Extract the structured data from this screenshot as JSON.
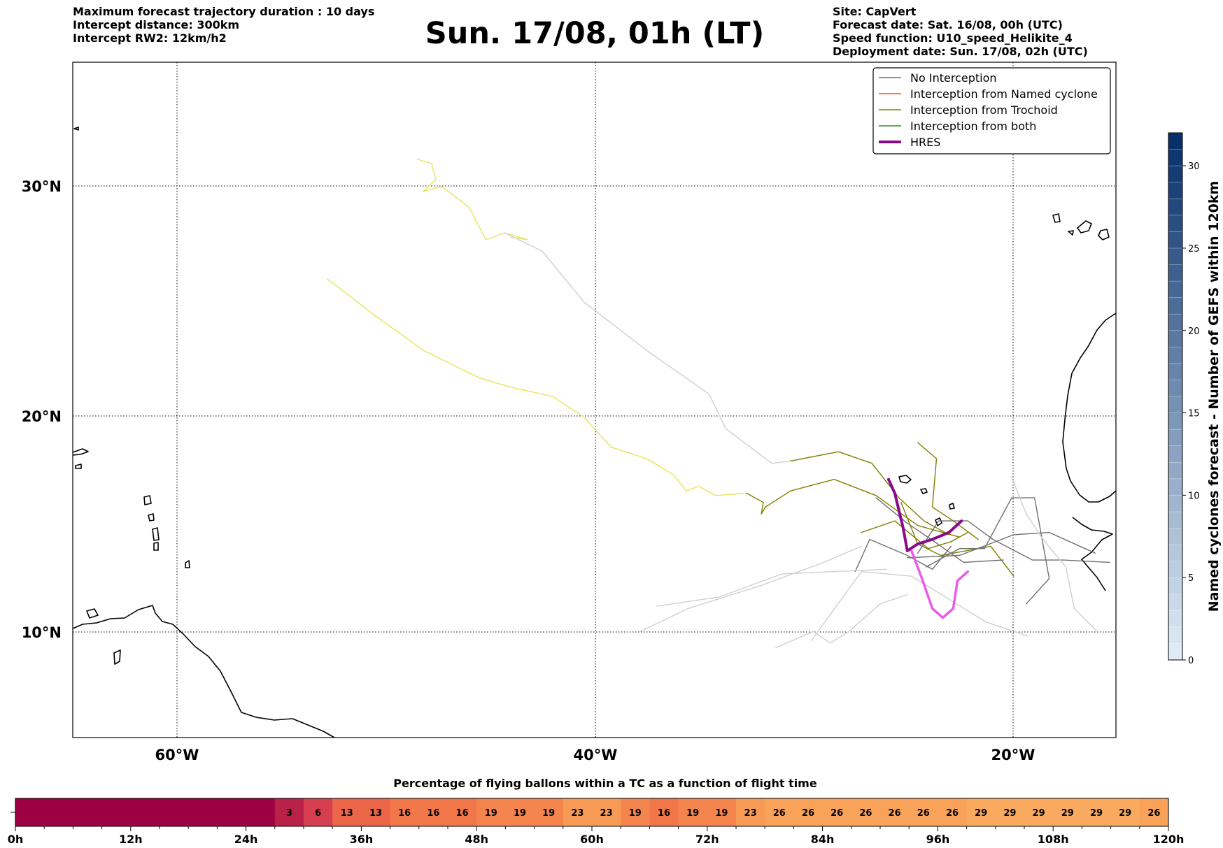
{
  "header": {
    "left": [
      "Maximum forecast trajectory duration : 10 days",
      "Intercept distance: 300km",
      "Intercept RW2: 12km/h2"
    ],
    "title": "Sun. 17/08, 01h (LT)",
    "right": [
      "Site: CapVert",
      "Forecast date: Sat. 16/08, 00h (UTC)",
      "Speed function: U10_speed_Helikite_4",
      "Deployment date: Sun. 17/08, 02h (UTC)"
    ]
  },
  "colors": {
    "no_interception": "#6f6f6f",
    "no_interception_light": "#cfcfcf",
    "named_cyclone": "#e8552a",
    "trochoid": "#7f7f00",
    "trochoid_light": "#e6e45a",
    "both": "#2e8b2e",
    "hres": "#8b0a8b",
    "hres_light": "#e85ce8"
  },
  "chart_data": [
    {
      "type": "map",
      "xlabel": "",
      "ylabel": "",
      "x_ticks": [
        "60°W",
        "40°W",
        "20°W"
      ],
      "y_ticks": [
        "30°N",
        "20°N",
        "10°N"
      ],
      "xlim_lon": [
        -65,
        -15
      ],
      "ylim_lat": [
        5.4,
        34.7
      ],
      "grid": true,
      "legend_position": "top-right",
      "legend": [
        {
          "label": "No Interception",
          "color_key": "no_interception"
        },
        {
          "label": "Interception from Named cyclone",
          "color_key": "named_cyclone"
        },
        {
          "label": "Interception from Trochoid",
          "color_key": "trochoid"
        },
        {
          "label": "Interception from both",
          "color_key": "both"
        },
        {
          "label": "HRES",
          "color_key": "hres"
        }
      ],
      "trajectories": [
        {
          "category": "trochoid_light",
          "points": [
            [
              -48.5,
              30.5
            ],
            [
              -47.8,
              30.3
            ],
            [
              -47.6,
              29.6
            ],
            [
              -48.2,
              29.1
            ],
            [
              -47.3,
              29.3
            ],
            [
              -46.0,
              28.4
            ],
            [
              -45.2,
              27.0
            ],
            [
              -44.3,
              27.3
            ],
            [
              -43.2,
              27.0
            ],
            [
              -44.0,
              27.1
            ]
          ]
        },
        {
          "category": "no_interception_light",
          "points": [
            [
              -44.3,
              27.3
            ],
            [
              -42.5,
              26.5
            ],
            [
              -40.5,
              24.3
            ],
            [
              -37.5,
              22.2
            ],
            [
              -34.5,
              20.3
            ],
            [
              -33.7,
              18.8
            ],
            [
              -31.5,
              17.3
            ],
            [
              -30.6,
              17.4
            ]
          ]
        },
        {
          "category": "trochoid_light",
          "points": [
            [
              -52.8,
              25.3
            ],
            [
              -50.5,
              23.7
            ],
            [
              -48.2,
              22.2
            ],
            [
              -45.5,
              21.0
            ],
            [
              -44.0,
              20.6
            ],
            [
              -42.0,
              20.2
            ],
            [
              -40.5,
              19.3
            ],
            [
              -39.2,
              18.0
            ],
            [
              -37.5,
              17.5
            ],
            [
              -36.2,
              16.8
            ],
            [
              -35.6,
              16.1
            ],
            [
              -35.0,
              16.3
            ],
            [
              -34.2,
              15.9
            ],
            [
              -32.7,
              16.0
            ]
          ]
        },
        {
          "category": "trochoid",
          "points": [
            [
              -32.7,
              16.0
            ],
            [
              -31.9,
              15.6
            ],
            [
              -32.0,
              15.1
            ],
            [
              -31.8,
              15.4
            ],
            [
              -30.6,
              16.1
            ],
            [
              -28.5,
              16.6
            ],
            [
              -26.5,
              15.9
            ],
            [
              -24.5,
              14.6
            ],
            [
              -22.5,
              14.1
            ]
          ]
        },
        {
          "category": "trochoid",
          "points": [
            [
              -30.6,
              17.4
            ],
            [
              -28.3,
              17.8
            ],
            [
              -26.7,
              17.3
            ],
            [
              -25.4,
              15.8
            ],
            [
              -24.2,
              14.8
            ],
            [
              -23.0,
              14.2
            ]
          ]
        },
        {
          "category": "trochoid",
          "points": [
            [
              -24.5,
              18.2
            ],
            [
              -23.6,
              17.5
            ],
            [
              -23.8,
              15.4
            ],
            [
              -22.8,
              14.8
            ],
            [
              -21.6,
              14.0
            ]
          ]
        },
        {
          "category": "trochoid",
          "points": [
            [
              -27.2,
              14.3
            ],
            [
              -25.6,
              14.8
            ],
            [
              -24.0,
              13.6
            ],
            [
              -22.9,
              13.9
            ],
            [
              -22.1,
              14.3
            ]
          ]
        },
        {
          "category": "trochoid",
          "points": [
            [
              -25.3,
              15.6
            ],
            [
              -24.5,
              13.8
            ],
            [
              -23.4,
              13.3
            ],
            [
              -21.0,
              13.7
            ],
            [
              -19.9,
              12.4
            ]
          ]
        },
        {
          "category": "no_interception",
          "points": [
            [
              -25.0,
              13.2
            ],
            [
              -22.5,
              13.3
            ],
            [
              -19.9,
              14.2
            ],
            [
              -18.2,
              14.3
            ],
            [
              -16.0,
              13.4
            ]
          ]
        },
        {
          "category": "no_interception",
          "points": [
            [
              -24.5,
              13.4
            ],
            [
              -23.5,
              14.8
            ],
            [
              -22.1,
              14.8
            ],
            [
              -20.9,
              14.0
            ],
            [
              -19.0,
              13.1
            ],
            [
              -17.5,
              13.1
            ],
            [
              -15.3,
              13.0
            ]
          ]
        },
        {
          "category": "no_interception",
          "points": [
            [
              -27.5,
              12.6
            ],
            [
              -26.8,
              14.0
            ],
            [
              -25.0,
              13.3
            ],
            [
              -23.8,
              12.7
            ],
            [
              -22.9,
              13.7
            ]
          ]
        },
        {
          "category": "no_interception",
          "points": [
            [
              -24.1,
              12.8
            ],
            [
              -22.5,
              13.6
            ],
            [
              -21.3,
              13.6
            ],
            [
              -20.0,
              15.8
            ],
            [
              -18.9,
              15.8
            ],
            [
              -18.2,
              12.3
            ],
            [
              -19.3,
              11.2
            ]
          ]
        },
        {
          "category": "no_interception",
          "points": [
            [
              -26.5,
              15.8
            ],
            [
              -25.0,
              14.7
            ],
            [
              -23.7,
              13.9
            ],
            [
              -22.3,
              13.0
            ],
            [
              -20.4,
              13.1
            ]
          ]
        },
        {
          "category": "no_interception_light",
          "points": [
            [
              -37.8,
              10.0
            ],
            [
              -35.5,
              11.0
            ],
            [
              -32.0,
              12.0
            ],
            [
              -29.0,
              13.0
            ],
            [
              -27.2,
              13.7
            ]
          ]
        },
        {
          "category": "no_interception_light",
          "points": [
            [
              -37.0,
              11.1
            ],
            [
              -34.0,
              11.5
            ],
            [
              -31.0,
              12.5
            ],
            [
              -28.5,
              12.6
            ],
            [
              -26.0,
              12.7
            ]
          ]
        },
        {
          "category": "no_interception_light",
          "points": [
            [
              -31.3,
              9.3
            ],
            [
              -29.5,
              10.0
            ],
            [
              -28.7,
              9.5
            ],
            [
              -27.8,
              10.0
            ],
            [
              -26.3,
              11.2
            ],
            [
              -25.0,
              11.6
            ]
          ]
        },
        {
          "category": "no_interception_light",
          "points": [
            [
              -29.6,
              9.6
            ],
            [
              -28.0,
              11.6
            ],
            [
              -27.2,
              12.6
            ],
            [
              -24.8,
              12.4
            ],
            [
              -23.0,
              11.4
            ],
            [
              -21.2,
              10.4
            ],
            [
              -19.2,
              9.8
            ]
          ]
        },
        {
          "category": "no_interception_light",
          "points": [
            [
              -20.0,
              16.7
            ],
            [
              -19.3,
              15.1
            ],
            [
              -18.5,
              14.0
            ],
            [
              -17.4,
              12.8
            ],
            [
              -17.0,
              11.0
            ],
            [
              -15.9,
              10.0
            ]
          ]
        },
        {
          "category": "hres",
          "points": [
            [
              -25.9,
              16.6
            ],
            [
              -25.6,
              16.0
            ],
            [
              -25.2,
              14.5
            ],
            [
              -25.0,
              13.5
            ],
            [
              -24.5,
              13.8
            ],
            [
              -23.8,
              14.0
            ],
            [
              -23.0,
              14.3
            ],
            [
              -22.4,
              14.8
            ]
          ]
        },
        {
          "category": "hres_light",
          "points": [
            [
              -24.8,
              13.5
            ],
            [
              -24.3,
              12.3
            ],
            [
              -23.8,
              11.0
            ],
            [
              -23.3,
              10.6
            ],
            [
              -22.8,
              11.0
            ],
            [
              -22.6,
              12.2
            ],
            [
              -22.1,
              12.6
            ]
          ]
        }
      ]
    },
    {
      "type": "heatmap",
      "title": "Named cyclones forecast - Number of GEFS within 120km",
      "orientation": "vertical",
      "ylim": [
        0,
        32
      ],
      "ticks": [
        0,
        5,
        10,
        15,
        20,
        25,
        30
      ],
      "tick_labels": [
        "0",
        "5",
        "10",
        "15",
        "20",
        "25",
        "30"
      ]
    },
    {
      "type": "heatmap",
      "title": "Percentage of flying ballons within a TC as a function of flight time",
      "x_ticks": [
        "0h",
        "12h",
        "24h",
        "36h",
        "48h",
        "60h",
        "72h",
        "84h",
        "96h",
        "108h",
        "120h"
      ],
      "xlim_hours": [
        0,
        120
      ],
      "cells": [
        {
          "start_h": 0,
          "end_h": 27,
          "value": 0,
          "label": ""
        },
        {
          "start_h": 27,
          "end_h": 30,
          "value": 3,
          "label": "3"
        },
        {
          "start_h": 30,
          "end_h": 33,
          "value": 6,
          "label": "6"
        },
        {
          "start_h": 33,
          "end_h": 36,
          "value": 13,
          "label": "13"
        },
        {
          "start_h": 36,
          "end_h": 39,
          "value": 13,
          "label": "13"
        },
        {
          "start_h": 39,
          "end_h": 42,
          "value": 16,
          "label": "16"
        },
        {
          "start_h": 42,
          "end_h": 45,
          "value": 16,
          "label": "16"
        },
        {
          "start_h": 45,
          "end_h": 48,
          "value": 16,
          "label": "16"
        },
        {
          "start_h": 48,
          "end_h": 51,
          "value": 19,
          "label": "19"
        },
        {
          "start_h": 51,
          "end_h": 54,
          "value": 19,
          "label": "19"
        },
        {
          "start_h": 54,
          "end_h": 57,
          "value": 19,
          "label": "19"
        },
        {
          "start_h": 57,
          "end_h": 60,
          "value": 23,
          "label": "23"
        },
        {
          "start_h": 60,
          "end_h": 63,
          "value": 23,
          "label": "23"
        },
        {
          "start_h": 63,
          "end_h": 66,
          "value": 19,
          "label": "19"
        },
        {
          "start_h": 66,
          "end_h": 69,
          "value": 16,
          "label": "16"
        },
        {
          "start_h": 69,
          "end_h": 72,
          "value": 19,
          "label": "19"
        },
        {
          "start_h": 72,
          "end_h": 75,
          "value": 19,
          "label": "19"
        },
        {
          "start_h": 75,
          "end_h": 78,
          "value": 23,
          "label": "23"
        },
        {
          "start_h": 78,
          "end_h": 81,
          "value": 26,
          "label": "26"
        },
        {
          "start_h": 81,
          "end_h": 84,
          "value": 26,
          "label": "26"
        },
        {
          "start_h": 84,
          "end_h": 87,
          "value": 26,
          "label": "26"
        },
        {
          "start_h": 87,
          "end_h": 90,
          "value": 26,
          "label": "26"
        },
        {
          "start_h": 90,
          "end_h": 93,
          "value": 26,
          "label": "26"
        },
        {
          "start_h": 93,
          "end_h": 96,
          "value": 26,
          "label": "26"
        },
        {
          "start_h": 96,
          "end_h": 99,
          "value": 26,
          "label": "26"
        },
        {
          "start_h": 99,
          "end_h": 102,
          "value": 29,
          "label": "29"
        },
        {
          "start_h": 102,
          "end_h": 105,
          "value": 29,
          "label": "29"
        },
        {
          "start_h": 105,
          "end_h": 108,
          "value": 29,
          "label": "29"
        },
        {
          "start_h": 108,
          "end_h": 111,
          "value": 29,
          "label": "29"
        },
        {
          "start_h": 111,
          "end_h": 114,
          "value": 29,
          "label": "29"
        },
        {
          "start_h": 114,
          "end_h": 117,
          "value": 29,
          "label": "29"
        },
        {
          "start_h": 117,
          "end_h": 120,
          "value": 26,
          "label": "26"
        }
      ]
    }
  ]
}
